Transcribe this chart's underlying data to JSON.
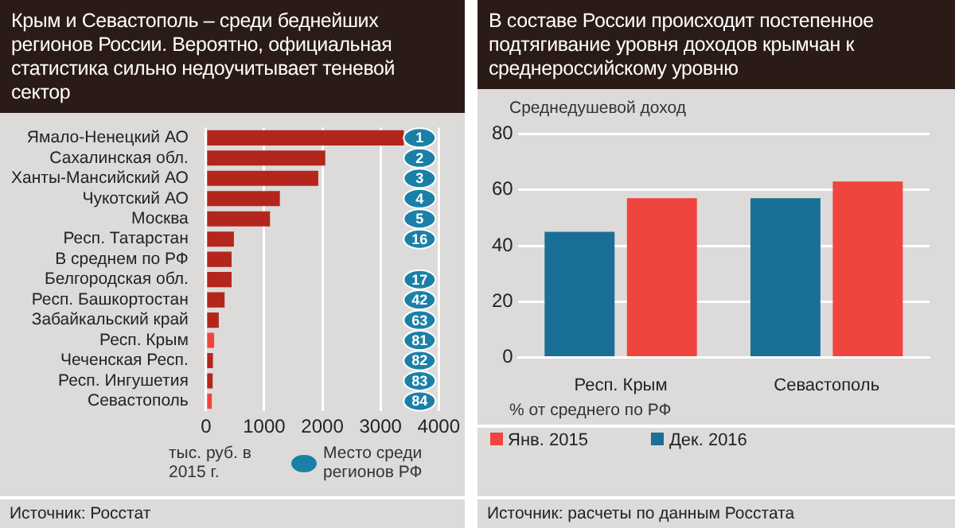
{
  "chart_data": [
    {
      "type": "bar",
      "orientation": "horizontal",
      "title": "Крым и Севастополь  – среди беднейших регионов России. Вероятно, официальная статистика сильно недоучитывает теневой сектор",
      "xlabel": "тыс. руб. в 2015 г.",
      "legend_title": "Место среди регионов РФ",
      "categories": [
        "Ямало-Ненецкий АО",
        "Сахалинская обл.",
        "Ханты-Мансийский АО",
        "Чукотский АО",
        "Москва",
        "Респ. Татарстан",
        "В среднем по РФ",
        "Белгородская обл.",
        "Респ. Башкортостан",
        "Забайкальский край",
        "Респ. Крым",
        "Чеченская Респ.",
        "Респ. Ингушетия",
        "Севастополь"
      ],
      "values": [
        3400,
        2050,
        1930,
        1270,
        1100,
        480,
        440,
        440,
        320,
        220,
        140,
        120,
        115,
        100
      ],
      "colors": [
        "#b3261e",
        "#b3261e",
        "#b3261e",
        "#b3261e",
        "#b3261e",
        "#b3261e",
        "#b3261e",
        "#b3261e",
        "#b3261e",
        "#b3261e",
        "#f0443e",
        "#b3261e",
        "#b3261e",
        "#f0443e"
      ],
      "xlim": [
        0,
        4000
      ],
      "xticks": [
        0,
        1000,
        2000,
        3000,
        4000
      ],
      "grid": "x",
      "annotations": [
        {
          "text": "1",
          "y": "Ямало-Ненецкий АО"
        },
        {
          "text": "2",
          "y": "Сахалинская обл."
        },
        {
          "text": "3",
          "y": "Ханты-Мансийский АО"
        },
        {
          "text": "4",
          "y": "Чукотский АО"
        },
        {
          "text": "5",
          "y": "Москва"
        },
        {
          "text": "16",
          "y": "Респ. Татарстан"
        },
        {
          "text": "17",
          "y": "Белгородская обл."
        },
        {
          "text": "42",
          "y": "Респ. Башкортостан"
        },
        {
          "text": "63",
          "y": "Забайкальский край"
        },
        {
          "text": "81",
          "y": "Респ. Крым"
        },
        {
          "text": "82",
          "y": "Чеченская Респ."
        },
        {
          "text": "83",
          "y": "Респ. Ингушетия"
        },
        {
          "text": "84",
          "y": "Севастополь"
        },
        "Источник: Росстат"
      ]
    },
    {
      "type": "bar",
      "title": "В составе России происходит постепенное подтягивание уровня доходов крымчан к среднероссийскому уровню",
      "ylabel": "Среднедушевой доход",
      "xlabel": "% от среднего по РФ",
      "categories": [
        "Респ. Крым",
        "Севастополь"
      ],
      "series": [
        {
          "name": "Дек. 2016",
          "color": "#1a6f96",
          "values": [
            45,
            57
          ]
        },
        {
          "name": "Янв. 2015",
          "color": "#f0443e",
          "values": [
            57,
            63
          ]
        }
      ],
      "ylim": [
        0,
        80
      ],
      "yticks": [
        0,
        20,
        40,
        60,
        80
      ],
      "grid": "y",
      "legend": "bottom",
      "annotations": [
        "Источник: расчеты по данным Росстата"
      ]
    }
  ]
}
